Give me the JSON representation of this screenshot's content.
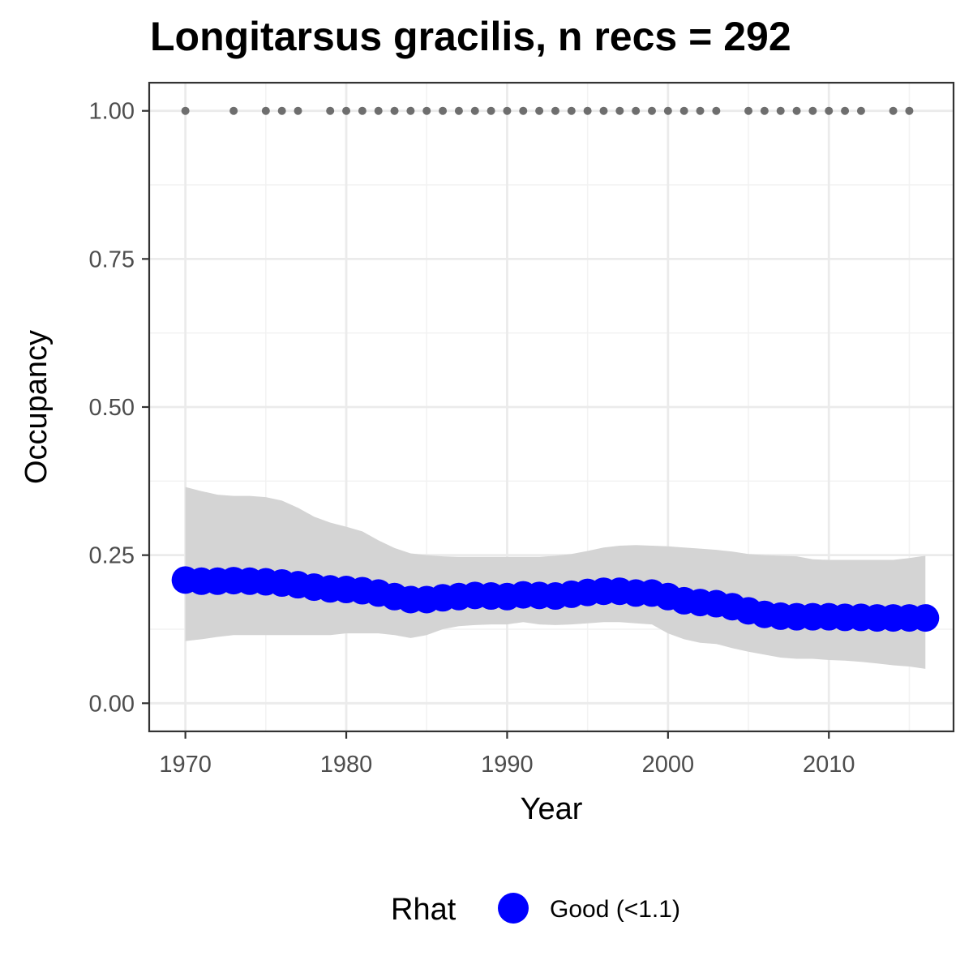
{
  "chart_data": {
    "type": "line",
    "title": "Longitarsus gracilis, n recs = 292",
    "xlabel": "Year",
    "ylabel": "Occupancy",
    "xlim": [
      1967.75,
      2017.75
    ],
    "ylim": [
      -0.0475,
      1.0475
    ],
    "x_ticks": [
      1970,
      1980,
      1990,
      2000,
      2010
    ],
    "x_tick_labels": [
      "1970",
      "1980",
      "1990",
      "2000",
      "2010"
    ],
    "y_ticks": [
      0,
      0.25,
      0.5,
      0.75,
      1.0
    ],
    "y_tick_labels": [
      "0.00",
      "0.25",
      "0.50",
      "0.75",
      "1.00"
    ],
    "grid": true,
    "series": [
      {
        "name": "Good (<1.1)",
        "color": "#0000ff",
        "x": [
          1970,
          1971,
          1972,
          1973,
          1974,
          1975,
          1976,
          1977,
          1978,
          1979,
          1980,
          1981,
          1982,
          1983,
          1984,
          1985,
          1986,
          1987,
          1988,
          1989,
          1990,
          1991,
          1992,
          1993,
          1994,
          1995,
          1996,
          1997,
          1998,
          1999,
          2000,
          2001,
          2002,
          2003,
          2004,
          2005,
          2006,
          2007,
          2008,
          2009,
          2010,
          2011,
          2012,
          2013,
          2014,
          2015,
          2016
        ],
        "y": [
          0.208,
          0.206,
          0.206,
          0.207,
          0.206,
          0.205,
          0.203,
          0.2,
          0.196,
          0.193,
          0.192,
          0.19,
          0.186,
          0.18,
          0.175,
          0.175,
          0.178,
          0.18,
          0.182,
          0.181,
          0.18,
          0.183,
          0.182,
          0.181,
          0.184,
          0.187,
          0.189,
          0.189,
          0.186,
          0.186,
          0.18,
          0.173,
          0.17,
          0.168,
          0.163,
          0.156,
          0.15,
          0.147,
          0.146,
          0.146,
          0.146,
          0.145,
          0.145,
          0.144,
          0.144,
          0.144,
          0.144
        ]
      }
    ],
    "ribbon": {
      "color": "#d4d4d4",
      "x": [
        1970,
        1971,
        1972,
        1973,
        1974,
        1975,
        1976,
        1977,
        1978,
        1979,
        1980,
        1981,
        1982,
        1983,
        1984,
        1985,
        1986,
        1987,
        1988,
        1989,
        1990,
        1991,
        1992,
        1993,
        1994,
        1995,
        1996,
        1997,
        1998,
        1999,
        2000,
        2001,
        2002,
        2003,
        2004,
        2005,
        2006,
        2007,
        2008,
        2009,
        2010,
        2011,
        2012,
        2013,
        2014,
        2015,
        2016
      ],
      "lower": [
        0.105,
        0.108,
        0.112,
        0.115,
        0.115,
        0.115,
        0.115,
        0.115,
        0.115,
        0.115,
        0.118,
        0.118,
        0.118,
        0.115,
        0.11,
        0.115,
        0.125,
        0.13,
        0.132,
        0.133,
        0.133,
        0.137,
        0.133,
        0.132,
        0.133,
        0.135,
        0.137,
        0.137,
        0.135,
        0.133,
        0.118,
        0.108,
        0.102,
        0.1,
        0.093,
        0.087,
        0.082,
        0.077,
        0.075,
        0.075,
        0.073,
        0.072,
        0.07,
        0.067,
        0.064,
        0.062,
        0.058
      ],
      "upper": [
        0.365,
        0.358,
        0.352,
        0.35,
        0.35,
        0.348,
        0.342,
        0.33,
        0.315,
        0.305,
        0.298,
        0.29,
        0.275,
        0.262,
        0.253,
        0.25,
        0.248,
        0.247,
        0.247,
        0.247,
        0.247,
        0.247,
        0.247,
        0.249,
        0.252,
        0.257,
        0.263,
        0.266,
        0.267,
        0.266,
        0.265,
        0.263,
        0.261,
        0.259,
        0.256,
        0.252,
        0.25,
        0.249,
        0.248,
        0.243,
        0.242,
        0.242,
        0.242,
        0.242,
        0.242,
        0.245,
        0.249
      ]
    },
    "records": {
      "color": "#6e6e6e",
      "y": 1.0,
      "years": [
        1970,
        1973,
        1975,
        1976,
        1977,
        1979,
        1980,
        1981,
        1982,
        1983,
        1984,
        1985,
        1986,
        1987,
        1988,
        1989,
        1990,
        1991,
        1992,
        1993,
        1994,
        1995,
        1996,
        1997,
        1998,
        1999,
        2000,
        2001,
        2002,
        2003,
        2005,
        2006,
        2007,
        2008,
        2009,
        2010,
        2011,
        2012,
        2014,
        2015
      ]
    },
    "legend": {
      "title": "Rhat",
      "position": "bottom",
      "items": [
        {
          "label": "Good (<1.1)",
          "color": "#0000ff"
        }
      ]
    }
  }
}
